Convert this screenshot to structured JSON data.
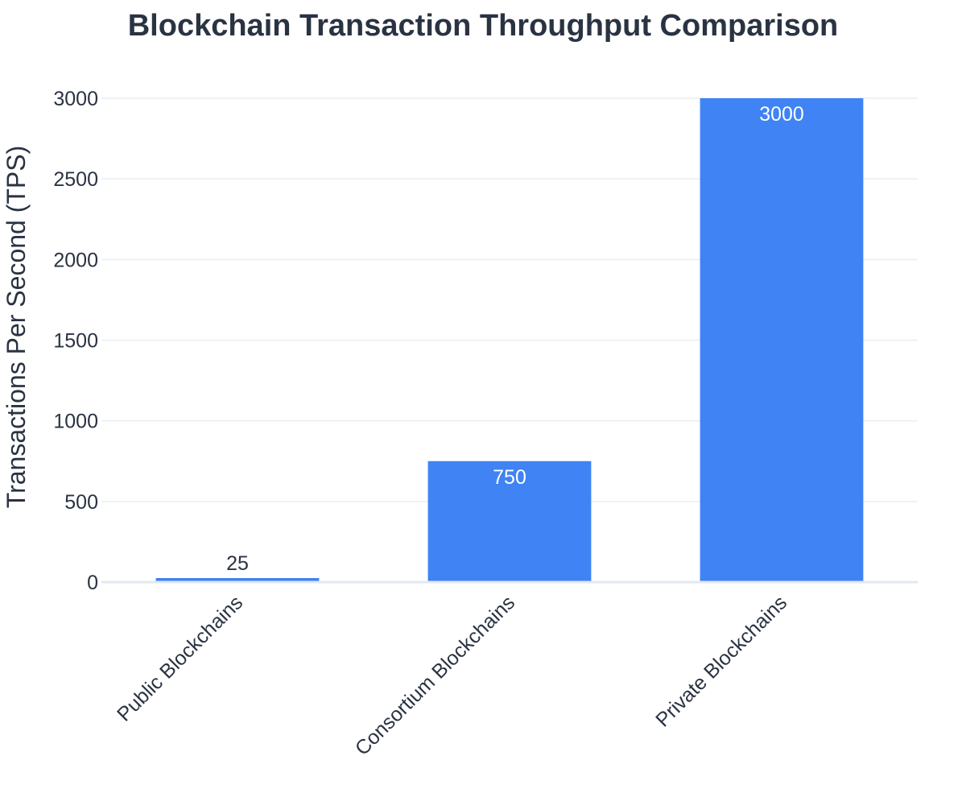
{
  "chart_data": {
    "type": "bar",
    "title": "Blockchain Transaction Throughput Comparison",
    "xlabel": "",
    "ylabel": "Transactions Per Second (TPS)",
    "categories": [
      "Public Blockchains",
      "Consortium Blockchains",
      "Private Blockchains"
    ],
    "values": [
      25,
      750,
      3000
    ],
    "value_labels": [
      "25",
      "750",
      "3000"
    ],
    "ylim": [
      0,
      3000
    ],
    "yticks": [
      0,
      500,
      1000,
      1500,
      2000,
      2500,
      3000
    ],
    "ytick_labels": [
      "0",
      "500",
      "1000",
      "1500",
      "2000",
      "2500",
      "3000"
    ],
    "grid": true,
    "legend": "none",
    "bar_color": "#3f83f4",
    "inside_label_color": "#ffffff",
    "outside_label_color": "#2a3342",
    "text_color": "#2a3342"
  }
}
